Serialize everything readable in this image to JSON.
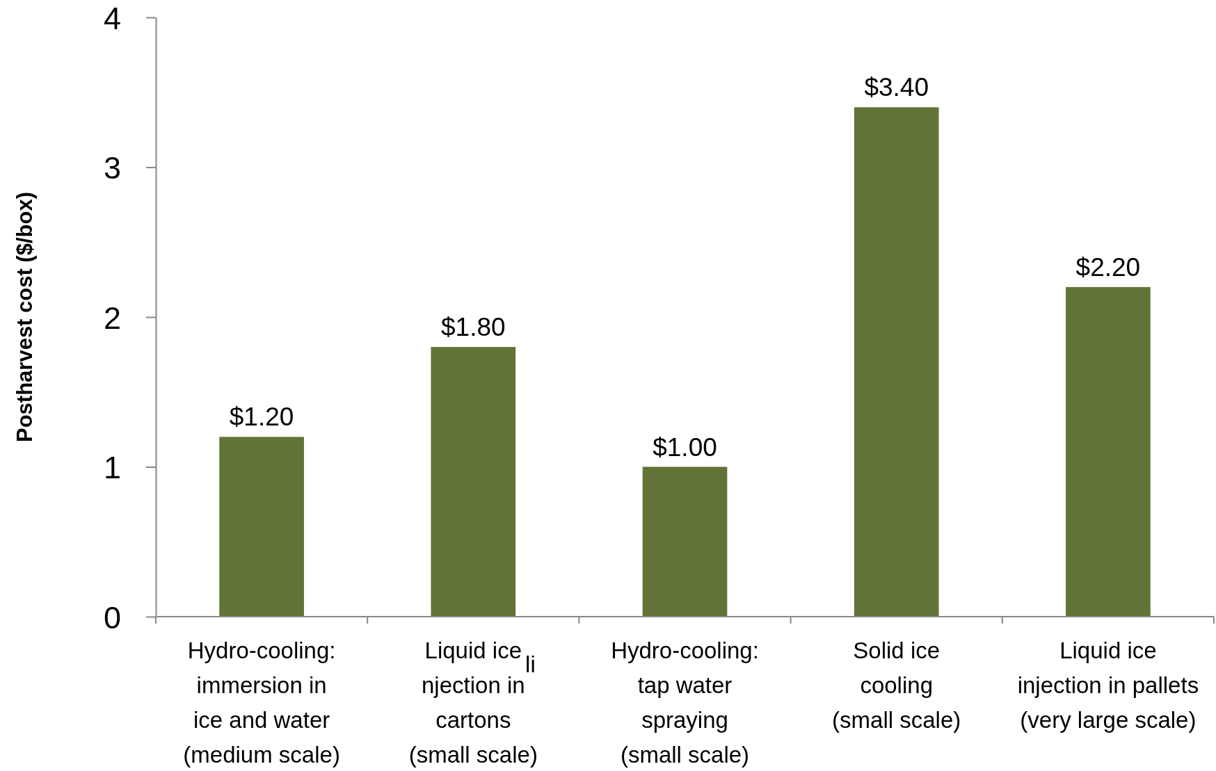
{
  "chart_data": {
    "type": "bar",
    "ylabel": "Postharvest cost ($/box)",
    "categories": [
      "Hydro-cooling:\nimmersion in\nice and water\n(medium scale)",
      "Liquid ice\nnjection in\ncartons\n(small scale)",
      "Hydro-cooling:\ntap water\nspraying\n(small scale)",
      "Solid ice\ncooling\n(small scale)",
      "Liquid ice\ninjection in pallets\n(very large scale)"
    ],
    "values": [
      1.2,
      1.8,
      1.0,
      3.4,
      2.2
    ],
    "value_labels": [
      "$1.20",
      "$1.80",
      "$1.00",
      "$3.40",
      "$2.20"
    ],
    "color": "#627337",
    "ylim": [
      0,
      4
    ],
    "yticks": [
      0,
      1,
      2,
      3,
      4
    ],
    "grid": false,
    "annotations": [
      "li"
    ]
  }
}
